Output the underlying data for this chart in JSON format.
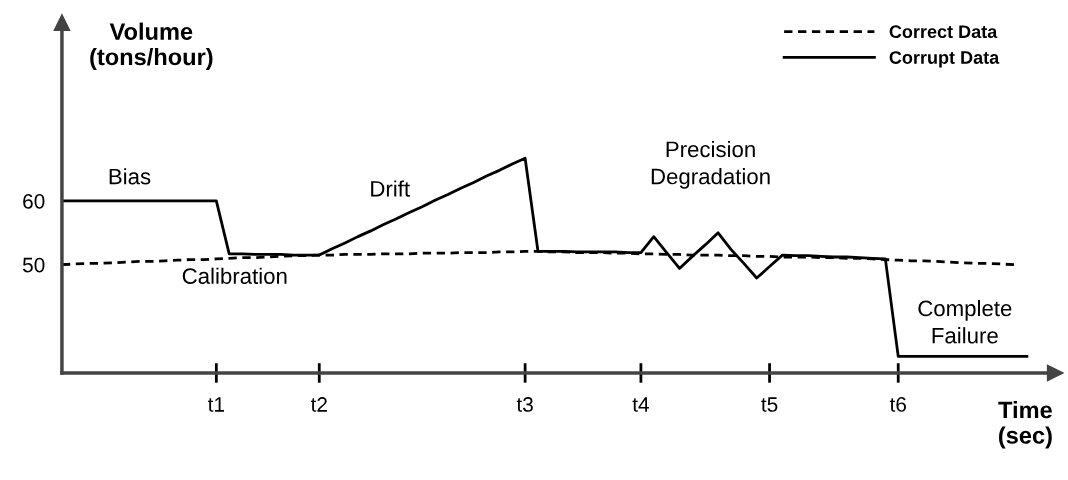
{
  "chart_data": {
    "type": "line",
    "xlabel": "Time\n(sec)",
    "ylabel": "Volume\n(tons/hour)",
    "categories": [
      null,
      null,
      null,
      null,
      null,
      null,
      null,
      null,
      null,
      null,
      null,
      null,
      "t1",
      null,
      null,
      null,
      null,
      null,
      null,
      null,
      "t2",
      null,
      null,
      null,
      null,
      null,
      null,
      null,
      null,
      null,
      null,
      null,
      null,
      null,
      null,
      null,
      "t3",
      null,
      null,
      null,
      null,
      null,
      null,
      null,
      null,
      "t4",
      null,
      null,
      null,
      null,
      null,
      null,
      null,
      null,
      null,
      "t5",
      null,
      null,
      null,
      null,
      null,
      null,
      null,
      null,
      null,
      "t6",
      null,
      null,
      null,
      null,
      null,
      null,
      null,
      null,
      null,
      null
    ],
    "ylim": [
      33,
      88
    ],
    "yticks": [
      50,
      60
    ],
    "grid": false,
    "legend": "top right",
    "marker": "none",
    "series": [
      {
        "name": "Correct Data",
        "color": "#000000",
        "line_style": "dashed",
        "values": [
          50.0,
          50.1,
          50.2,
          50.2,
          50.3,
          50.4,
          50.5,
          50.5,
          50.6,
          50.7,
          50.8,
          50.8,
          50.9,
          51.0,
          51.1,
          51.1,
          51.2,
          51.3,
          51.4,
          51.4,
          51.5,
          51.5,
          51.6,
          51.6,
          51.6,
          51.7,
          51.7,
          51.7,
          51.8,
          51.8,
          51.8,
          51.9,
          51.9,
          51.9,
          52.0,
          52.0,
          52.1,
          52.1,
          52.0,
          52.0,
          51.9,
          51.9,
          51.9,
          51.8,
          51.8,
          51.7,
          51.7,
          51.6,
          51.6,
          51.5,
          51.5,
          51.5,
          51.4,
          51.4,
          51.3,
          51.3,
          51.2,
          51.2,
          51.2,
          51.1,
          51.1,
          51.0,
          51.0,
          50.9,
          50.8,
          50.7,
          50.6,
          50.6,
          50.5,
          50.4,
          50.3,
          50.2,
          50.2,
          50.1,
          50.0,
          null
        ]
      },
      {
        "name": "Corrupt Data",
        "color": "#000000",
        "line_style": "solid",
        "values": [
          60,
          60,
          60,
          60,
          60,
          60,
          60,
          60,
          60,
          60,
          60,
          60,
          60,
          51.7,
          51.7,
          51.6,
          51.6,
          51.6,
          51.5,
          51.5,
          51.5,
          52.5,
          53.4,
          54.4,
          55.3,
          56.3,
          57.2,
          58.2,
          59.1,
          60.1,
          61.0,
          62.0,
          62.9,
          63.9,
          64.8,
          65.8,
          66.7,
          52.1,
          52.1,
          52.1,
          52.0,
          52.0,
          52.0,
          52.0,
          51.9,
          51.9,
          54.4,
          51.9,
          49.4,
          51.3,
          53.1,
          55.0,
          52.4,
          50.2,
          47.9,
          49.7,
          51.5,
          51.4,
          51.4,
          51.3,
          51.2,
          51.2,
          51.1,
          51.0,
          50.9,
          35.6,
          35.6,
          35.6,
          35.6,
          35.6,
          35.6,
          35.6,
          35.6,
          35.6,
          35.6,
          35.6
        ]
      }
    ],
    "annotations": [
      "Bias",
      "Calibration",
      "Drift",
      "Precision\nDegradation",
      "Complete\nFailure"
    ]
  }
}
